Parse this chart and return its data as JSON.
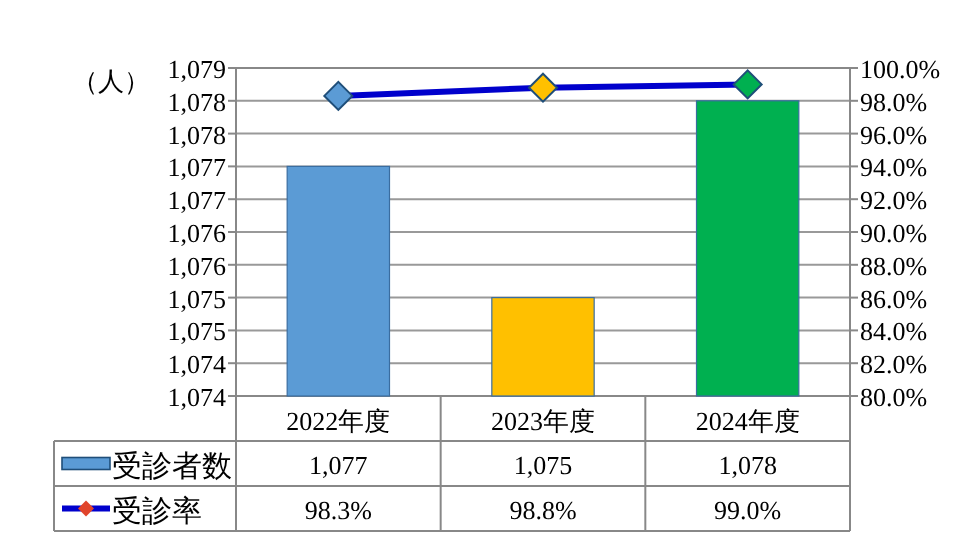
{
  "chart_data": {
    "type": "bar",
    "ylabel": "（人）",
    "categories": [
      "2022年度",
      "2023年度",
      "2024年度"
    ],
    "series": [
      {
        "name": "受診者数",
        "color": "#5b9bd5",
        "colors": [
          "#5b9bd5",
          "#ffc000",
          "#00b050"
        ],
        "values": [
          1077,
          1075,
          1078
        ]
      },
      {
        "name": "受診率",
        "type": "line",
        "axis": "y2",
        "color": "#0000cc",
        "marker": "diamond",
        "colors": [
          "#5b9bd5",
          "#ffc000",
          "#00b050"
        ],
        "values": [
          98.3,
          98.8,
          99.0
        ]
      }
    ],
    "ylim": [
      1073.5,
      1078.5
    ],
    "yticks": [
      {
        "value": 1073.5,
        "label": "1,074"
      },
      {
        "value": 1074,
        "label": "1,074"
      },
      {
        "value": 1074.5,
        "label": "1,075"
      },
      {
        "value": 1075,
        "label": "1,075"
      },
      {
        "value": 1075.5,
        "label": "1,076"
      },
      {
        "value": 1076,
        "label": "1,076"
      },
      {
        "value": 1076.5,
        "label": "1,077"
      },
      {
        "value": 1077,
        "label": "1,077"
      },
      {
        "value": 1077.5,
        "label": "1,078"
      },
      {
        "value": 1078,
        "label": "1,078"
      },
      {
        "value": 1078.5,
        "label": "1,079"
      }
    ],
    "y2lim": [
      80,
      100
    ],
    "y2ticks": [
      {
        "value": 80,
        "label": "80.0%"
      },
      {
        "value": 82,
        "label": "82.0%"
      },
      {
        "value": 84,
        "label": "84.0%"
      },
      {
        "value": 86,
        "label": "86.0%"
      },
      {
        "value": 88,
        "label": "88.0%"
      },
      {
        "value": 90,
        "label": "90.0%"
      },
      {
        "value": 92,
        "label": "92.0%"
      },
      {
        "value": 94,
        "label": "94.0%"
      },
      {
        "value": 96,
        "label": "96.0%"
      },
      {
        "value": 98,
        "label": "98.0%"
      },
      {
        "value": 100,
        "label": "100.0%"
      }
    ],
    "value_labels": [
      [
        "1,077",
        "1,075",
        "1,078"
      ],
      [
        "98.3%",
        "98.8%",
        "99.0%"
      ]
    ],
    "grid": "y",
    "legend": "bottom"
  }
}
